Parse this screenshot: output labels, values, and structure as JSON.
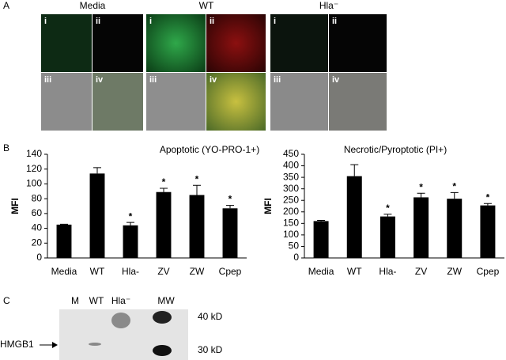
{
  "panel_a": {
    "label": "A",
    "groups": [
      {
        "title": "Media",
        "subpanels": [
          "i",
          "ii",
          "iii",
          "iv"
        ]
      },
      {
        "title": "WT",
        "subpanels": [
          "i",
          "ii",
          "iii",
          "iv"
        ]
      },
      {
        "title": "Hla⁻",
        "subpanels": [
          "i",
          "ii",
          "iii",
          "iv"
        ]
      }
    ]
  },
  "panel_b": {
    "label": "B"
  },
  "chart_data": [
    {
      "type": "bar",
      "title": "Apoptotic (YO-PRO-1+)",
      "y_label": "MFI",
      "color": "#000000",
      "categories": [
        "Media",
        "WT",
        "Hla-",
        "ZV",
        "ZW",
        "Cpep"
      ],
      "values": [
        45,
        114,
        44,
        89,
        85,
        67
      ],
      "errors": [
        0.5,
        8,
        4,
        5,
        13,
        4
      ],
      "significance": [
        null,
        null,
        "*",
        "*",
        "*",
        "*"
      ],
      "ylim": [
        0,
        140
      ],
      "yticks": [
        0,
        20,
        40,
        60,
        80,
        100,
        120,
        140
      ]
    },
    {
      "type": "bar",
      "title": "Necrotic/Pyroptotic (PI+)",
      "y_label": "MFI",
      "color": "#000000",
      "categories": [
        "Media",
        "WT",
        "Hla-",
        "ZV",
        "ZW",
        "Cpep"
      ],
      "values": [
        160,
        355,
        180,
        263,
        257,
        228
      ],
      "errors": [
        3,
        50,
        10,
        18,
        27,
        8
      ],
      "significance": [
        null,
        null,
        "*",
        "*",
        "*",
        "*"
      ],
      "ylim": [
        0,
        450
      ],
      "yticks": [
        0,
        50,
        100,
        150,
        200,
        250,
        300,
        350,
        400,
        450
      ]
    }
  ],
  "panel_c": {
    "label": "C",
    "lanes": [
      "M",
      "WT",
      "Hla⁻",
      "MW"
    ],
    "markers": [
      "40 kD",
      "30 kD"
    ],
    "band_label": "HMGB1"
  }
}
